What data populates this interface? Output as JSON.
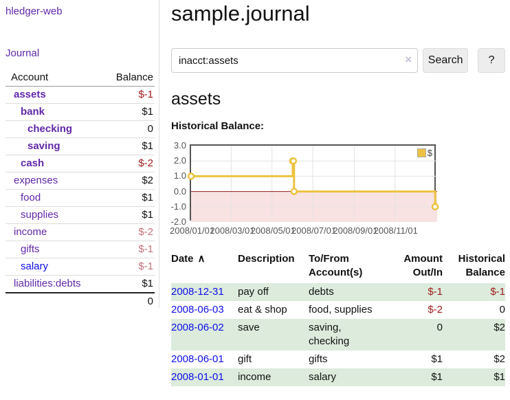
{
  "app": {
    "brand": "hledger-web",
    "journal_label": "Journal"
  },
  "sidebar": {
    "headers": {
      "account": "Account",
      "balance": "Balance"
    },
    "accounts": [
      {
        "name": "assets",
        "balance": "$-1"
      },
      {
        "name": "bank",
        "balance": "$1"
      },
      {
        "name": "checking",
        "balance": "0"
      },
      {
        "name": "saving",
        "balance": "$1"
      },
      {
        "name": "cash",
        "balance": "$-2"
      },
      {
        "name": "expenses",
        "balance": "$2"
      },
      {
        "name": "food",
        "balance": "$1"
      },
      {
        "name": "supplies",
        "balance": "$1"
      },
      {
        "name": "income",
        "balance": "$-2"
      },
      {
        "name": "gifts",
        "balance": "$-1"
      },
      {
        "name": "salary",
        "balance": "$-1"
      },
      {
        "name": "liabilities:debts",
        "balance": "$1"
      }
    ],
    "total": "0"
  },
  "main": {
    "title": "sample.journal",
    "search": {
      "value": "inacct:assets",
      "clear_icon": "×",
      "button_label": "Search",
      "help_label": "?"
    },
    "account_heading": "assets",
    "chart_label": "Historical Balance:",
    "register": {
      "headers": {
        "date": "Date",
        "sort_icon": "∧",
        "description": "Description",
        "accounts": "To/From\nAccount(s)",
        "amount": "Amount\nOut/In",
        "balance": "Historical\nBalance"
      },
      "rows": [
        {
          "date": "2008-12-31",
          "description": "pay off",
          "accounts": "debts",
          "amount": "$-1",
          "balance": "$-1"
        },
        {
          "date": "2008-06-03",
          "description": "eat & shop",
          "accounts": "food, supplies",
          "amount": "$-2",
          "balance": "0"
        },
        {
          "date": "2008-06-02",
          "description": "save",
          "accounts": "saving,\nchecking",
          "amount": "0",
          "balance": "$2"
        },
        {
          "date": "2008-06-01",
          "description": "gift",
          "accounts": "gifts",
          "amount": "$1",
          "balance": "$2"
        },
        {
          "date": "2008-01-01",
          "description": "income",
          "accounts": "salary",
          "amount": "$1",
          "balance": "$1"
        }
      ]
    }
  },
  "chart_data": {
    "type": "line",
    "step": true,
    "title": "Historical Balance",
    "xlabel": "",
    "ylabel": "",
    "series": [
      {
        "name": "$",
        "color": "#edc240",
        "points": [
          [
            "2008-01-01",
            1
          ],
          [
            "2008-06-01",
            2
          ],
          [
            "2008-06-02",
            2
          ],
          [
            "2008-06-03",
            0
          ],
          [
            "2008-12-31",
            -1
          ]
        ]
      }
    ],
    "x_ticks": [
      "2008/01/01",
      "2008/03/01",
      "2008/05/01",
      "2008/07/01",
      "2008/09/01",
      "2008/11/01"
    ],
    "y_ticks": [
      3.0,
      2.0,
      1.0,
      0.0,
      -1.0,
      -2.0
    ],
    "ylim": [
      -2,
      3
    ],
    "xlim": [
      "2008-01-01",
      "2009-01-03"
    ],
    "grid": true,
    "legend_position": "top-right",
    "negative_region_color": "#f9e2e2",
    "zero_line_color": "#8b1a1a",
    "grid_color": "#e3e3e3"
  },
  "colors": {
    "link_purple": "#6128a8",
    "link_blue": "#0e0ee8",
    "negative_strong": "#9e1a1a",
    "negative_muted": "#c4707a",
    "row_stripe_green": "#dcebdc",
    "series_gold": "#edc240"
  }
}
